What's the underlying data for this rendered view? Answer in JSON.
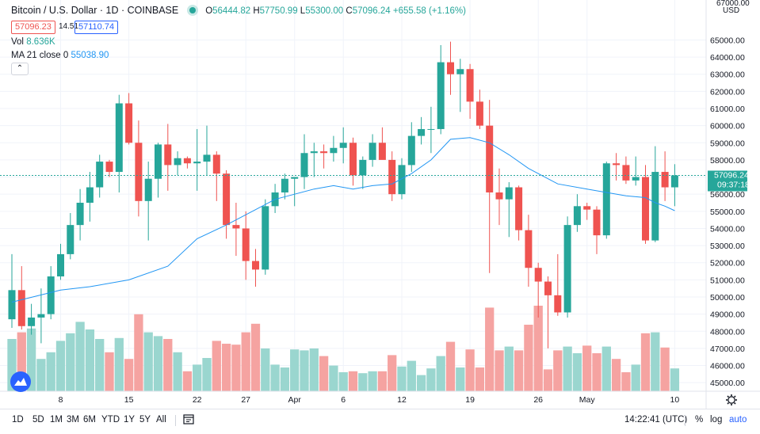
{
  "header": {
    "symbol": "Bitcoin / U.S. Dollar",
    "interval": "1D",
    "exchange": "COINBASE",
    "open_label": "O",
    "open": "56444.82",
    "high_label": "H",
    "high": "57750.99",
    "low_label": "L",
    "low": "55300.00",
    "close_label": "C",
    "close": "57096.24",
    "change": "+655.58 (+1.16%)"
  },
  "quote": {
    "sell": "57096.23",
    "spread": "14.51",
    "buy": "57110.74"
  },
  "indicators": {
    "vol_label": "Vol",
    "vol_value": "8.636K",
    "ma_label": "MA 21 close 0",
    "ma_value": "55038.90"
  },
  "price_axis": {
    "currency_top": "67000.00",
    "currency": "USD",
    "last_price": "57096.24",
    "countdown": "09:37:18"
  },
  "colors": {
    "up": "#26a69a",
    "down": "#ef5350",
    "vol_up": "#9ad6cf",
    "vol_down": "#f5a3a1",
    "ma": "#2196f3",
    "accent": "#2962ff"
  },
  "toolbar": {
    "ranges": [
      "1D",
      "5D",
      "1M",
      "3M",
      "6M",
      "YTD",
      "1Y",
      "5Y",
      "All"
    ],
    "time": "14:22:41 (UTC)",
    "percent": "%",
    "log": "log",
    "auto": "auto"
  },
  "chart_data": {
    "type": "candlestick",
    "ylim": [
      44500,
      66500
    ],
    "y_ticks": [
      45000,
      46000,
      47000,
      48000,
      49000,
      50000,
      51000,
      52000,
      53000,
      54000,
      55000,
      56000,
      57000,
      58000,
      59000,
      60000,
      61000,
      62000,
      63000,
      64000,
      65000
    ],
    "x_labels": [
      {
        "i": 5,
        "label": "8"
      },
      {
        "i": 12,
        "label": "15"
      },
      {
        "i": 19,
        "label": "22"
      },
      {
        "i": 24,
        "label": "27"
      },
      {
        "i": 29,
        "label": "Apr"
      },
      {
        "i": 34,
        "label": "6"
      },
      {
        "i": 40,
        "label": "12"
      },
      {
        "i": 47,
        "label": "19"
      },
      {
        "i": 54,
        "label": "26"
      },
      {
        "i": 59,
        "label": "May"
      },
      {
        "i": 68,
        "label": "10"
      }
    ],
    "candles": [
      {
        "o": 48700,
        "h": 52500,
        "l": 48200,
        "c": 50400,
        "v": 0.55
      },
      {
        "o": 50400,
        "h": 51800,
        "l": 48100,
        "c": 48300,
        "v": 0.62
      },
      {
        "o": 48300,
        "h": 49600,
        "l": 47800,
        "c": 48800,
        "v": 0.66
      },
      {
        "o": 48800,
        "h": 50500,
        "l": 47300,
        "c": 49000,
        "v": 0.34
      },
      {
        "o": 49000,
        "h": 51800,
        "l": 48700,
        "c": 51200,
        "v": 0.41
      },
      {
        "o": 51200,
        "h": 53100,
        "l": 51000,
        "c": 52500,
        "v": 0.53
      },
      {
        "o": 52500,
        "h": 54900,
        "l": 52200,
        "c": 54200,
        "v": 0.61
      },
      {
        "o": 54200,
        "h": 56300,
        "l": 53300,
        "c": 55500,
        "v": 0.73
      },
      {
        "o": 55500,
        "h": 57300,
        "l": 54400,
        "c": 56400,
        "v": 0.65
      },
      {
        "o": 56400,
        "h": 58300,
        "l": 55800,
        "c": 57900,
        "v": 0.55
      },
      {
        "o": 57900,
        "h": 58000,
        "l": 57000,
        "c": 57300,
        "v": 0.41
      },
      {
        "o": 57300,
        "h": 61800,
        "l": 56100,
        "c": 61300,
        "v": 0.56
      },
      {
        "o": 61300,
        "h": 61900,
        "l": 58900,
        "c": 59000,
        "v": 0.34
      },
      {
        "o": 59000,
        "h": 60300,
        "l": 54700,
        "c": 55600,
        "v": 0.81
      },
      {
        "o": 55600,
        "h": 57900,
        "l": 53300,
        "c": 56900,
        "v": 0.62
      },
      {
        "o": 56900,
        "h": 59000,
        "l": 55800,
        "c": 58900,
        "v": 0.58
      },
      {
        "o": 58900,
        "h": 60100,
        "l": 56200,
        "c": 57700,
        "v": 0.55
      },
      {
        "o": 57700,
        "h": 58500,
        "l": 57100,
        "c": 58100,
        "v": 0.41
      },
      {
        "o": 58100,
        "h": 58200,
        "l": 57500,
        "c": 57800,
        "v": 0.21
      },
      {
        "o": 57800,
        "h": 59800,
        "l": 56200,
        "c": 57900,
        "v": 0.28
      },
      {
        "o": 57900,
        "h": 60000,
        "l": 57100,
        "c": 58300,
        "v": 0.35
      },
      {
        "o": 58300,
        "h": 58500,
        "l": 55600,
        "c": 57200,
        "v": 0.53
      },
      {
        "o": 57200,
        "h": 57400,
        "l": 53400,
        "c": 54200,
        "v": 0.5
      },
      {
        "o": 54200,
        "h": 55500,
        "l": 52400,
        "c": 54000,
        "v": 0.49
      },
      {
        "o": 54000,
        "h": 55000,
        "l": 51000,
        "c": 52100,
        "v": 0.62
      },
      {
        "o": 52100,
        "h": 52800,
        "l": 50600,
        "c": 51600,
        "v": 0.71
      },
      {
        "o": 51600,
        "h": 55700,
        "l": 51300,
        "c": 55300,
        "v": 0.45
      },
      {
        "o": 55300,
        "h": 56600,
        "l": 54900,
        "c": 56100,
        "v": 0.28
      },
      {
        "o": 56100,
        "h": 57200,
        "l": 55700,
        "c": 56900,
        "v": 0.25
      },
      {
        "o": 56900,
        "h": 57000,
        "l": 55300,
        "c": 57000,
        "v": 0.44
      },
      {
        "o": 57000,
        "h": 59500,
        "l": 56300,
        "c": 58400,
        "v": 0.43
      },
      {
        "o": 58400,
        "h": 59000,
        "l": 57000,
        "c": 58500,
        "v": 0.45
      },
      {
        "o": 58500,
        "h": 58900,
        "l": 57500,
        "c": 58400,
        "v": 0.37
      },
      {
        "o": 58400,
        "h": 59400,
        "l": 57900,
        "c": 58700,
        "v": 0.27
      },
      {
        "o": 58700,
        "h": 59900,
        "l": 57800,
        "c": 59000,
        "v": 0.2
      },
      {
        "o": 59000,
        "h": 59300,
        "l": 56500,
        "c": 57100,
        "v": 0.21
      },
      {
        "o": 57100,
        "h": 58200,
        "l": 56300,
        "c": 58000,
        "v": 0.19
      },
      {
        "o": 58000,
        "h": 59500,
        "l": 57600,
        "c": 59000,
        "v": 0.21
      },
      {
        "o": 59000,
        "h": 59900,
        "l": 58100,
        "c": 58000,
        "v": 0.21
      },
      {
        "o": 58000,
        "h": 58500,
        "l": 55600,
        "c": 56000,
        "v": 0.38
      },
      {
        "o": 56000,
        "h": 58100,
        "l": 55700,
        "c": 57700,
        "v": 0.26
      },
      {
        "o": 57700,
        "h": 60200,
        "l": 57300,
        "c": 59400,
        "v": 0.32
      },
      {
        "o": 59400,
        "h": 60500,
        "l": 58900,
        "c": 59800,
        "v": 0.17
      },
      {
        "o": 59800,
        "h": 61100,
        "l": 58400,
        "c": 59800,
        "v": 0.24
      },
      {
        "o": 59800,
        "h": 64700,
        "l": 59500,
        "c": 63700,
        "v": 0.37
      },
      {
        "o": 63700,
        "h": 64900,
        "l": 61800,
        "c": 63000,
        "v": 0.52
      },
      {
        "o": 63000,
        "h": 63900,
        "l": 60800,
        "c": 63300,
        "v": 0.25
      },
      {
        "o": 63300,
        "h": 63600,
        "l": 60400,
        "c": 61400,
        "v": 0.44
      },
      {
        "o": 61400,
        "h": 62100,
        "l": 59800,
        "c": 60000,
        "v": 0.25
      },
      {
        "o": 60000,
        "h": 61500,
        "l": 51400,
        "c": 56100,
        "v": 0.88
      },
      {
        "o": 56100,
        "h": 57500,
        "l": 54200,
        "c": 55700,
        "v": 0.43
      },
      {
        "o": 55700,
        "h": 56700,
        "l": 53500,
        "c": 56400,
        "v": 0.47
      },
      {
        "o": 56400,
        "h": 56500,
        "l": 53300,
        "c": 53900,
        "v": 0.43
      },
      {
        "o": 53900,
        "h": 54800,
        "l": 50600,
        "c": 51700,
        "v": 0.7
      },
      {
        "o": 51700,
        "h": 52000,
        "l": 48800,
        "c": 50900,
        "v": 0.9
      },
      {
        "o": 50900,
        "h": 51200,
        "l": 47000,
        "c": 50100,
        "v": 0.23
      },
      {
        "o": 50100,
        "h": 52500,
        "l": 48900,
        "c": 49100,
        "v": 0.43
      },
      {
        "o": 49100,
        "h": 54700,
        "l": 48800,
        "c": 54200,
        "v": 0.47
      },
      {
        "o": 54200,
        "h": 56000,
        "l": 53800,
        "c": 55300,
        "v": 0.4
      },
      {
        "o": 55300,
        "h": 55500,
        "l": 54500,
        "c": 55100,
        "v": 0.48
      },
      {
        "o": 55100,
        "h": 55300,
        "l": 52500,
        "c": 53600,
        "v": 0.4
      },
      {
        "o": 53600,
        "h": 57900,
        "l": 53400,
        "c": 57800,
        "v": 0.47
      },
      {
        "o": 57800,
        "h": 58400,
        "l": 56800,
        "c": 57700,
        "v": 0.34
      },
      {
        "o": 57700,
        "h": 58200,
        "l": 56600,
        "c": 56800,
        "v": 0.2
      },
      {
        "o": 56800,
        "h": 58200,
        "l": 56500,
        "c": 57000,
        "v": 0.28
      },
      {
        "o": 57000,
        "h": 57700,
        "l": 53100,
        "c": 53300,
        "v": 0.61
      },
      {
        "o": 53300,
        "h": 58800,
        "l": 53200,
        "c": 57300,
        "v": 0.62
      },
      {
        "o": 57300,
        "h": 58500,
        "l": 55600,
        "c": 56400,
        "v": 0.46
      },
      {
        "o": 56400,
        "h": 57750,
        "l": 55300,
        "c": 57096,
        "v": 0.24
      }
    ],
    "ma21": [
      {
        "i": 0,
        "y": 49700
      },
      {
        "i": 5,
        "y": 50400
      },
      {
        "i": 8,
        "y": 50600
      },
      {
        "i": 12,
        "y": 51000
      },
      {
        "i": 16,
        "y": 51800
      },
      {
        "i": 19,
        "y": 53400
      },
      {
        "i": 22,
        "y": 54200
      },
      {
        "i": 25,
        "y": 55100
      },
      {
        "i": 27,
        "y": 55700
      },
      {
        "i": 29,
        "y": 56000
      },
      {
        "i": 31,
        "y": 56300
      },
      {
        "i": 33,
        "y": 56500
      },
      {
        "i": 35,
        "y": 56300
      },
      {
        "i": 37,
        "y": 56500
      },
      {
        "i": 39,
        "y": 56600
      },
      {
        "i": 41,
        "y": 57200
      },
      {
        "i": 43,
        "y": 58000
      },
      {
        "i": 45,
        "y": 59200
      },
      {
        "i": 47,
        "y": 59300
      },
      {
        "i": 49,
        "y": 59000
      },
      {
        "i": 51,
        "y": 58300
      },
      {
        "i": 53,
        "y": 57500
      },
      {
        "i": 56,
        "y": 56600
      },
      {
        "i": 59,
        "y": 56300
      },
      {
        "i": 61,
        "y": 56100
      },
      {
        "i": 63,
        "y": 55900
      },
      {
        "i": 65,
        "y": 55800
      },
      {
        "i": 66,
        "y": 55500
      },
      {
        "i": 67,
        "y": 55300
      },
      {
        "i": 68,
        "y": 55039
      }
    ]
  }
}
